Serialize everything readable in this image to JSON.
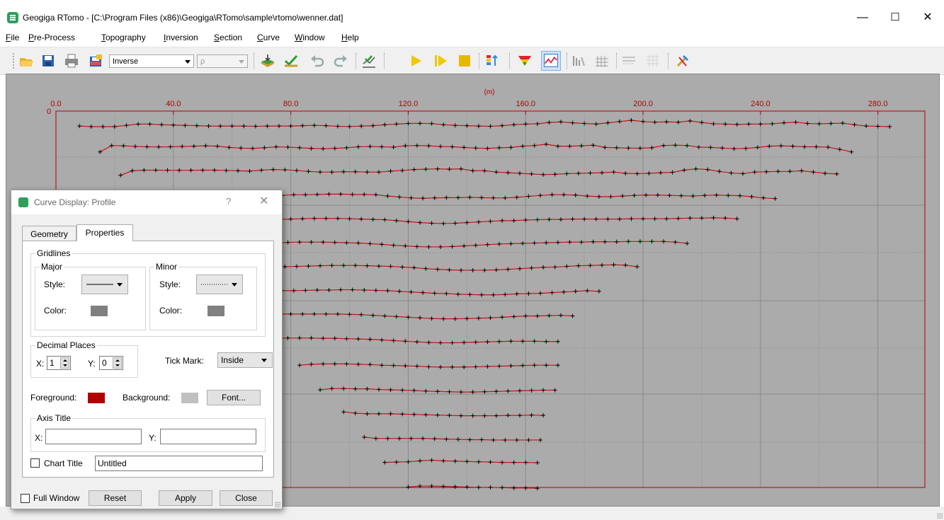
{
  "window": {
    "title": "Geogiga RTomo - [C:\\Program Files (x86)\\Geogiga\\RTomo\\sample\\rtomo\\wenner.dat]",
    "minimize": "—",
    "maximize": "☐",
    "close": "✕"
  },
  "menu": [
    {
      "key": "F",
      "rest": "ile"
    },
    {
      "key": "P",
      "rest": "re-Process"
    },
    {
      "key": "T",
      "rest": "opography"
    },
    {
      "key": "I",
      "rest": "nversion"
    },
    {
      "key": "S",
      "rest": "ection"
    },
    {
      "key": "C",
      "rest": "urve"
    },
    {
      "key": "W",
      "rest": "indow"
    },
    {
      "key": "H",
      "rest": "elp"
    }
  ],
  "toolbar": {
    "mode_combo": "Inverse",
    "param_combo": "ρ",
    "icons": [
      "open-icon",
      "save-icon",
      "print-icon",
      "export-icon",
      "topography-icon",
      "check-icon",
      "undo-icon",
      "redo-icon",
      "chart-check-icon",
      "play-icon",
      "step-icon",
      "stop-icon",
      "color-bar-icon",
      "filter-icon",
      "profile-curve-icon",
      "bar-icon",
      "grid-icon",
      "mesh-icon",
      "dots-icon",
      "tools-icon"
    ]
  },
  "chart_data": {
    "type": "line",
    "xlabel": "(m)",
    "x_ticks": [
      "0.0",
      "40.0",
      "80.0",
      "120.0",
      "160.0",
      "200.0",
      "240.0",
      "280.0"
    ],
    "y_ticks": [
      "0"
    ],
    "xlim": [
      0,
      296
    ],
    "colors": {
      "line": "#d01010",
      "axis": "#b00000",
      "point": "#000000",
      "background": "#ababab"
    },
    "series": [
      {
        "x0": 8,
        "dx": 4,
        "y": [
          1.1,
          1.2,
          1.2,
          1.2,
          1.0,
          0.8,
          0.8,
          0.9,
          0.95,
          1.0,
          1.05,
          1.1,
          1.12,
          1.1,
          1.12,
          1.15,
          1.12,
          1.1,
          1.1,
          1.05,
          1.0,
          1.05,
          1.15,
          1.18,
          1.12,
          1.05,
          0.9,
          0.8,
          0.7,
          0.68,
          0.72,
          0.9,
          1.0,
          1.05,
          1.12,
          1.15,
          1.05,
          0.9,
          0.8,
          0.75,
          0.55,
          0.45,
          0.6,
          0.7,
          0.8,
          0.6,
          0.4,
          0.2,
          0.4,
          0.5,
          0.45,
          0.5,
          0.3,
          0.55,
          0.75,
          0.8,
          0.85,
          0.8,
          0.8,
          0.75,
          0.6,
          0.5,
          0.7,
          0.75,
          0.7,
          0.65,
          0.9,
          1.1,
          1.15,
          1.2
        ]
      },
      {
        "x0": 15,
        "dx": 4,
        "y": [
          1.5,
          0.5,
          0.55,
          0.65,
          0.7,
          0.72,
          0.7,
          0.65,
          0.6,
          0.55,
          0.6,
          0.8,
          0.9,
          0.95,
          0.85,
          0.7,
          0.75,
          0.85,
          0.95,
          1.0,
          0.95,
          0.85,
          0.7,
          0.65,
          0.7,
          0.75,
          0.55,
          0.5,
          0.55,
          0.65,
          0.7,
          0.8,
          0.9,
          0.95,
          0.85,
          0.8,
          0.6,
          0.5,
          0.3,
          0.6,
          0.6,
          0.55,
          0.45,
          0.8,
          0.85,
          0.9,
          0.92,
          0.85,
          0.5,
          0.45,
          0.5,
          0.75,
          0.8,
          0.9,
          1.0,
          0.95,
          0.8,
          0.6,
          0.55,
          0.6,
          0.7,
          0.7,
          0.75,
          1.1,
          1.5
        ]
      },
      {
        "x0": 22,
        "dx": 4,
        "y": [
          1.5,
          0.8,
          0.7,
          0.7,
          0.72,
          0.72,
          0.72,
          0.7,
          0.7,
          0.75,
          0.8,
          0.85,
          0.7,
          0.6,
          0.65,
          0.75,
          0.9,
          1.0,
          1.0,
          0.95,
          0.95,
          1.0,
          1.0,
          0.85,
          0.75,
          0.6,
          0.55,
          0.5,
          0.55,
          0.5,
          0.8,
          0.8,
          1.0,
          1.1,
          1.2,
          1.3,
          1.4,
          1.35,
          1.25,
          1.2,
          1.15,
          1.1,
          1.0,
          1.2,
          1.25,
          1.2,
          1.1,
          1.05,
          0.7,
          0.5,
          0.6,
          0.9,
          1.15,
          1.25,
          1.0,
          0.95,
          0.9,
          0.9,
          0.8,
          1.0,
          1.2,
          1.3
        ]
      },
      {
        "x0": 29,
        "dx": 4,
        "y": [
          1.3,
          1.05,
          0.95,
          0.9,
          0.9,
          0.95,
          1.1,
          1.2,
          1.2,
          1.15,
          1.15,
          1.1,
          1.0,
          0.9,
          0.9,
          0.85,
          0.8,
          0.8,
          0.85,
          0.85,
          0.9,
          1.1,
          1.25,
          1.4,
          1.45,
          1.4,
          1.35,
          1.35,
          1.3,
          1.35,
          1.4,
          1.4,
          1.3,
          1.15,
          1.0,
          0.9,
          0.9,
          0.95,
          1.1,
          1.2,
          1.2,
          1.1,
          1.0,
          0.95,
          0.95,
          1.0,
          1.05,
          1.1,
          1.0,
          0.95,
          1.0,
          1.05,
          1.2,
          1.4,
          1.5
        ]
      },
      {
        "x0": 36,
        "dx": 4,
        "y": [
          1.4,
          1.3,
          1.2,
          1.15,
          1.2,
          1.25,
          1.25,
          1.2,
          1.15,
          1.15,
          1.1,
          1.05,
          1.0,
          0.95,
          0.95,
          0.95,
          1.0,
          1.05,
          1.1,
          1.15,
          1.3,
          1.45,
          1.6,
          1.7,
          1.75,
          1.7,
          1.6,
          1.5,
          1.4,
          1.3,
          1.3,
          1.2,
          1.15,
          1.1,
          1.1,
          1.05,
          1.05,
          1.05,
          1.05,
          1.05,
          1.0,
          1.0,
          1.0,
          1.0,
          0.95,
          0.9,
          0.9,
          0.85,
          0.9,
          1.0
        ]
      },
      {
        "x0": 43,
        "dx": 4,
        "y": [
          1.5,
          1.3,
          1.25,
          1.2,
          1.2,
          1.2,
          1.2,
          1.15,
          1.1,
          1.05,
          1.0,
          1.0,
          1.0,
          1.05,
          1.1,
          1.15,
          1.25,
          1.35,
          1.5,
          1.6,
          1.7,
          1.75,
          1.75,
          1.7,
          1.6,
          1.5,
          1.4,
          1.3,
          1.25,
          1.2,
          1.15,
          1.1,
          1.05,
          1.0,
          1.0,
          0.95,
          0.95,
          0.95,
          0.9,
          0.9,
          0.9,
          0.9,
          1.0,
          1.2
        ]
      },
      {
        "x0": 50,
        "dx": 4,
        "y": [
          1.5,
          1.3,
          1.3,
          1.25,
          1.25,
          1.25,
          1.25,
          1.2,
          1.15,
          1.1,
          1.05,
          1.0,
          1.0,
          1.0,
          1.05,
          1.1,
          1.15,
          1.25,
          1.35,
          1.5,
          1.6,
          1.7,
          1.75,
          1.75,
          1.75,
          1.7,
          1.6,
          1.5,
          1.4,
          1.3,
          1.25,
          1.15,
          1.05,
          1.0,
          0.95,
          0.9,
          0.95,
          1.2
        ]
      },
      {
        "x0": 57,
        "dx": 4,
        "y": [
          1.4,
          1.3,
          1.3,
          1.3,
          1.3,
          1.3,
          1.3,
          1.25,
          1.2,
          1.2,
          1.15,
          1.15,
          1.2,
          1.25,
          1.3,
          1.4,
          1.5,
          1.6,
          1.7,
          1.75,
          1.85,
          1.9,
          1.95,
          1.95,
          1.9,
          1.8,
          1.75,
          1.7,
          1.6,
          1.5,
          1.4,
          1.3,
          1.4
        ]
      },
      {
        "x0": 64,
        "dx": 4,
        "y": [
          1.5,
          1.35,
          1.3,
          1.3,
          1.3,
          1.3,
          1.3,
          1.3,
          1.3,
          1.35,
          1.4,
          1.5,
          1.6,
          1.7,
          1.8,
          1.9,
          2.0,
          2.05,
          2.05,
          2.0,
          1.95,
          1.9,
          1.8,
          1.7,
          1.6,
          1.6,
          1.55,
          1.5,
          1.6
        ]
      },
      {
        "x0": 71,
        "dx": 4,
        "y": [
          1.6,
          1.45,
          1.4,
          1.4,
          1.4,
          1.45,
          1.45,
          1.5,
          1.55,
          1.6,
          1.7,
          1.8,
          1.9,
          2.0,
          2.1,
          2.15,
          2.15,
          2.1,
          2.05,
          2.0,
          1.95,
          1.9,
          1.9,
          1.9,
          1.95,
          1.95
        ]
      },
      {
        "x0": 83,
        "dx": 4,
        "y": [
          2.0,
          1.85,
          1.8,
          1.8,
          1.8,
          1.85,
          1.9,
          2.0,
          2.05,
          2.1,
          2.15,
          2.25,
          2.3,
          2.3,
          2.3,
          2.25,
          2.2,
          2.15,
          2.1,
          2.05,
          2.0,
          2.0,
          2.0
        ]
      },
      {
        "x0": 90,
        "dx": 4,
        "y": [
          2.2,
          2.0,
          2.0,
          2.05,
          2.05,
          2.15,
          2.2,
          2.25,
          2.3,
          2.4,
          2.45,
          2.5,
          2.55,
          2.55,
          2.5,
          2.45,
          2.4,
          2.35,
          2.3,
          2.25,
          2.25
        ]
      },
      {
        "x0": 98,
        "dx": 4,
        "y": [
          2.0,
          2.2,
          2.3,
          2.3,
          2.3,
          2.35,
          2.4,
          2.45,
          2.5,
          2.55,
          2.6,
          2.6,
          2.6,
          2.6,
          2.55,
          2.55,
          2.5,
          2.55
        ]
      },
      {
        "x0": 105,
        "dx": 4,
        "y": [
          2.3,
          2.5,
          2.5,
          2.5,
          2.5,
          2.5,
          2.55,
          2.6,
          2.65,
          2.7,
          2.7,
          2.75,
          2.75,
          2.75,
          2.75,
          2.75
        ]
      },
      {
        "x0": 112,
        "dx": 4,
        "y": [
          2.6,
          2.55,
          2.5,
          2.35,
          2.25,
          2.35,
          2.4,
          2.45,
          2.5,
          2.55,
          2.6,
          2.6,
          2.6,
          2.65
        ]
      },
      {
        "x0": 120,
        "dx": 4,
        "y": [
          2.8,
          2.65,
          2.65,
          2.7,
          2.75,
          2.8,
          2.85,
          2.85,
          2.9,
          2.95,
          2.95,
          3.0
        ]
      }
    ]
  },
  "dialog": {
    "title": "Curve Display: Profile",
    "help": "?",
    "close": "✕",
    "tabs": [
      "Geometry",
      "Properties"
    ],
    "gridlines": {
      "label": "Gridlines",
      "major": {
        "label": "Major",
        "style_label": "Style:",
        "color_label": "Color:",
        "style": "solid",
        "color": "#808080"
      },
      "minor": {
        "label": "Minor",
        "style_label": "Style:",
        "color_label": "Color:",
        "style": "dotted",
        "color": "#808080"
      }
    },
    "decimal": {
      "label": "Decimal Places",
      "x_label": "X:",
      "x_value": "1",
      "y_label": "Y:",
      "y_value": "0"
    },
    "tick_mark": {
      "label": "Tick Mark:",
      "value": "Inside"
    },
    "foreground": {
      "label": "Foreground:",
      "color": "#b00000"
    },
    "background": {
      "label": "Background:",
      "color": "#c0c0c0"
    },
    "font_button": "Font...",
    "axis_title": {
      "label": "Axis Title",
      "x_label": "X:",
      "x_value": "",
      "y_label": "Y:",
      "y_value": ""
    },
    "chart_title": {
      "label": "Chart  Title",
      "value": "Untitled",
      "checked": false
    },
    "full_window": {
      "label": "Full Window",
      "checked": false
    },
    "buttons": {
      "reset": "Reset",
      "apply": "Apply",
      "close": "Close"
    }
  }
}
